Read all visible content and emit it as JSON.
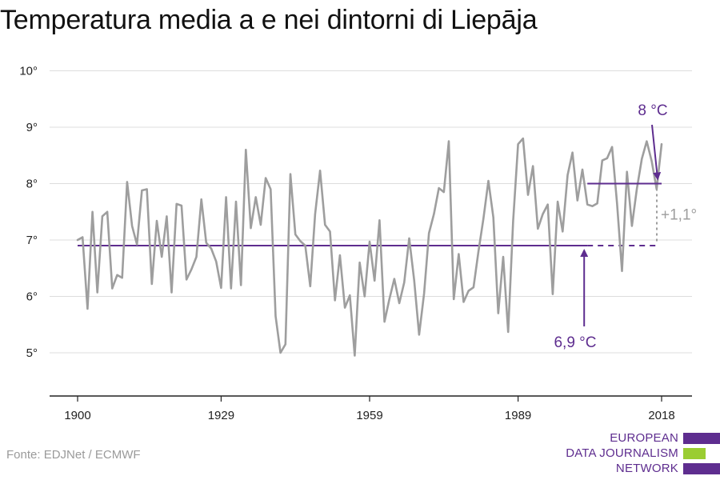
{
  "title": "Temperatura media a e nei dintorni di Liepāja",
  "source": "Fonte: EDJNet / ECMWF",
  "logo": {
    "lines": [
      "EUROPEAN",
      "DATA JOURNALISM",
      "NETWORK"
    ],
    "colors": {
      "purple": "#5e2d8f",
      "green": "#9acd32"
    }
  },
  "colors": {
    "series": "#9e9e9e",
    "baseline": "#5e2d8f",
    "recent": "#5e2d8f",
    "diff": "#9e9e9e",
    "grid": "#dddddd",
    "axis": "#222222"
  },
  "chart_data": {
    "type": "line",
    "title": "Temperatura media a e nei dintorni di Liepāja",
    "xlabel": "",
    "ylabel": "",
    "xlim": [
      1900,
      2018
    ],
    "ylim": [
      4.3,
      10
    ],
    "x_ticks": [
      1900,
      1929,
      1959,
      1989,
      2018
    ],
    "y_ticks": [
      5,
      6,
      7,
      8,
      9,
      10
    ],
    "y_tick_labels": [
      "5°",
      "6°",
      "7°",
      "8°",
      "9°",
      "10°"
    ],
    "grid": true,
    "series": [
      {
        "x": [
          1900,
          1901,
          1902,
          1903,
          1904,
          1905,
          1906,
          1907,
          1908,
          1909,
          1910,
          1911,
          1912,
          1913,
          1914,
          1915,
          1916,
          1917,
          1918,
          1919,
          1920,
          1921,
          1922,
          1923,
          1924,
          1925,
          1926,
          1927,
          1928,
          1929,
          1930,
          1931,
          1932,
          1933,
          1934,
          1935,
          1936,
          1937,
          1938,
          1939,
          1940,
          1941,
          1942,
          1943,
          1944,
          1945,
          1946,
          1947,
          1948,
          1949,
          1950,
          1951,
          1952,
          1953,
          1954,
          1955,
          1956,
          1957,
          1958,
          1959,
          1960,
          1961,
          1962,
          1963,
          1964,
          1965,
          1966,
          1967,
          1968,
          1969,
          1970,
          1971,
          1972,
          1973,
          1974,
          1975,
          1976,
          1977,
          1978,
          1979,
          1980,
          1981,
          1982,
          1983,
          1984,
          1985,
          1986,
          1987,
          1988,
          1989,
          1990,
          1991,
          1992,
          1993,
          1994,
          1995,
          1996,
          1997,
          1998,
          1999,
          2000,
          2001,
          2002,
          2003,
          2004,
          2005,
          2006,
          2007,
          2008,
          2009,
          2010,
          2011,
          2012,
          2013,
          2014,
          2015,
          2016,
          2017,
          2018
        ],
        "values": [
          7.0,
          7.05,
          5.78,
          7.5,
          6.07,
          7.42,
          7.5,
          6.14,
          6.38,
          6.33,
          8.03,
          7.25,
          6.92,
          7.88,
          7.9,
          6.22,
          7.34,
          6.7,
          7.42,
          6.07,
          7.64,
          7.61,
          6.3,
          6.48,
          6.7,
          7.72,
          6.95,
          6.85,
          6.62,
          6.15,
          7.76,
          6.14,
          7.68,
          6.2,
          8.6,
          7.21,
          7.76,
          7.27,
          8.1,
          7.9,
          5.65,
          5.0,
          5.15,
          8.17,
          7.1,
          6.98,
          6.9,
          6.18,
          7.46,
          8.23,
          7.27,
          7.15,
          5.93,
          6.73,
          5.8,
          6.02,
          4.95,
          6.6,
          6.0,
          6.97,
          6.28,
          7.35,
          5.55,
          5.95,
          6.31,
          5.88,
          6.25,
          7.03,
          6.29,
          5.32,
          6.05,
          7.12,
          7.46,
          7.92,
          7.85,
          8.75,
          5.95,
          6.75,
          5.9,
          6.1,
          6.16,
          6.8,
          7.38,
          8.05,
          7.4,
          5.7,
          6.7,
          5.37,
          7.33,
          8.7,
          8.8,
          7.8,
          8.31,
          7.2,
          7.46,
          7.63,
          6.04,
          7.68,
          7.15,
          8.15,
          8.55,
          7.7,
          8.25,
          7.63,
          7.6,
          7.65,
          8.41,
          8.45,
          8.65,
          7.65,
          6.45,
          8.21,
          7.25,
          7.91,
          8.44,
          8.75,
          8.4,
          7.9,
          8.7
        ]
      }
    ],
    "reference_lines": [
      {
        "value": 6.9,
        "x_from": 1900,
        "x_to": 2018,
        "solid_until": 2003,
        "label": "6,9 °C"
      },
      {
        "value": 8.0,
        "x_from": 2003,
        "x_to": 2018,
        "label": "8 °C"
      }
    ],
    "annotations": {
      "difference_label": "+1,1°"
    }
  }
}
